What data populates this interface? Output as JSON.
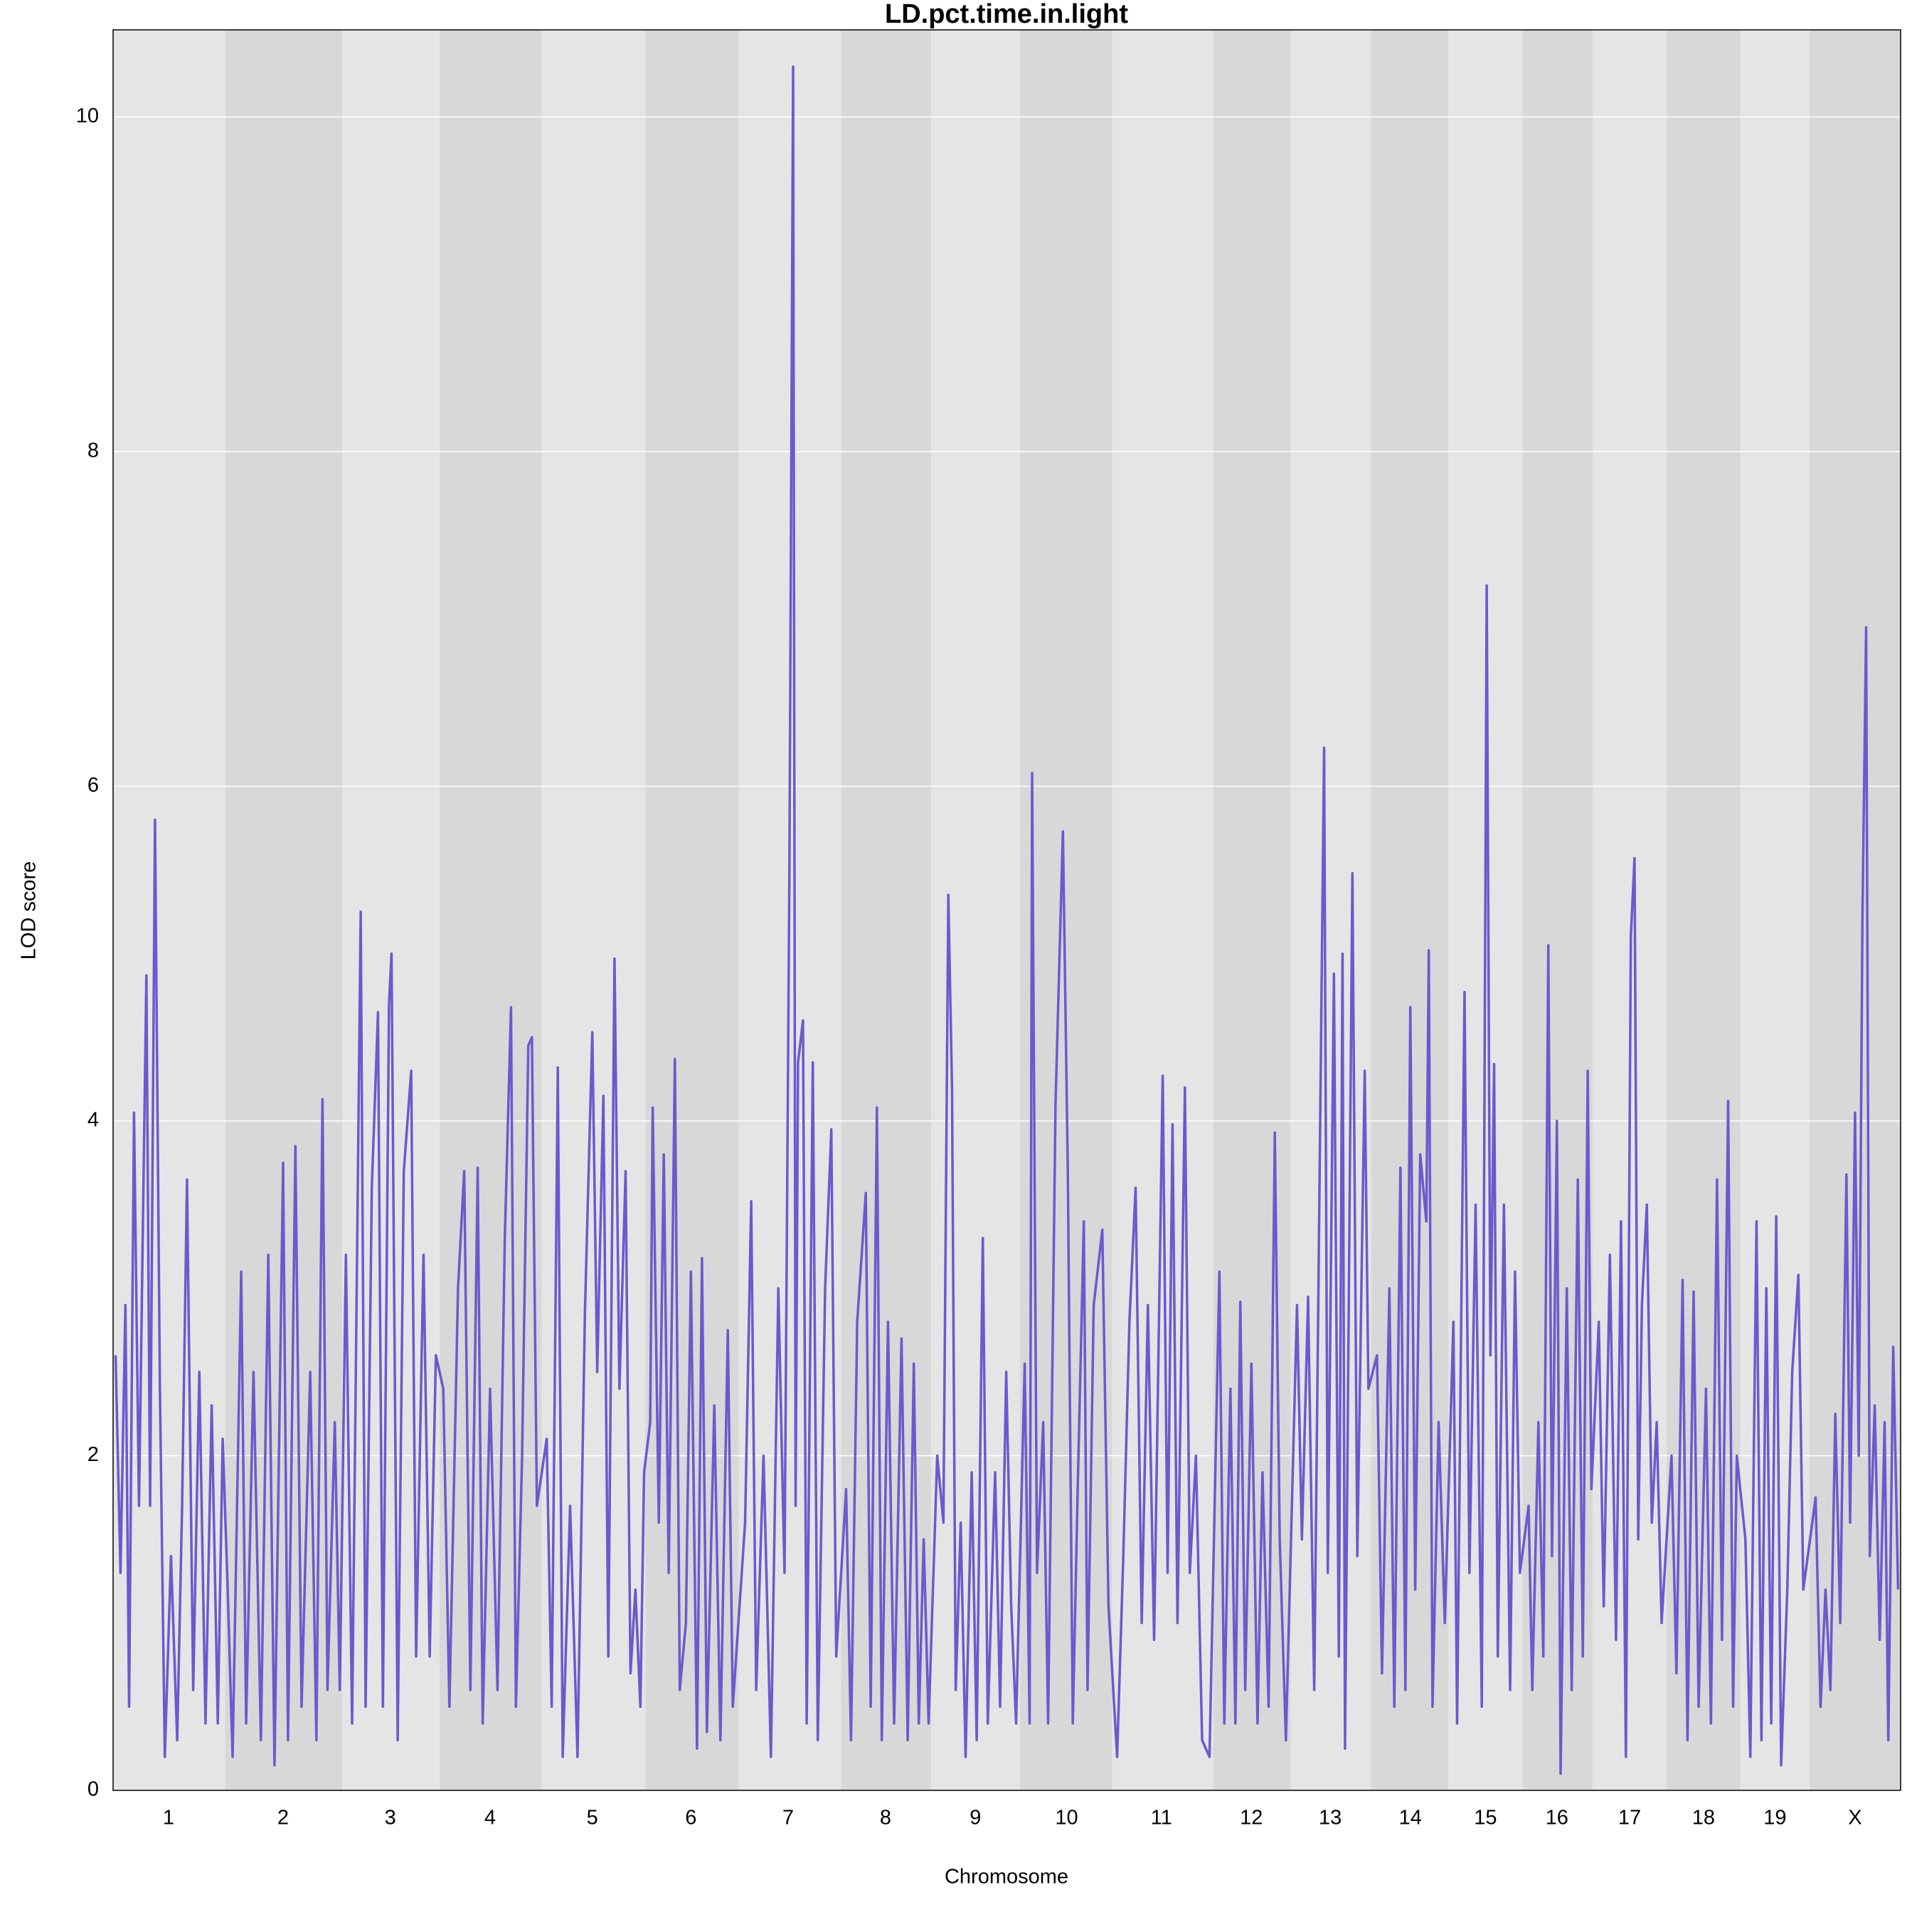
{
  "chart_data": {
    "type": "line",
    "title": "LD.pct.time.in.light",
    "x_label": "Chromosome",
    "y_label": "LOD score",
    "color": "#6a5acd",
    "band_colors": [
      "#e5e5e5",
      "#d8d8d8"
    ],
    "grid": true,
    "xlim": [
      0,
      1451
    ],
    "ylim": [
      0,
      10.52
    ],
    "yticks": [
      0,
      2,
      4,
      6,
      8,
      10
    ],
    "chromosome_bounds": [
      0,
      91,
      186,
      265,
      348,
      432,
      508,
      591,
      664,
      736,
      811,
      893,
      956,
      1021,
      1084,
      1144,
      1201,
      1261,
      1321,
      1377,
      1451
    ],
    "xticks": [
      {
        "value": 45,
        "label": "1"
      },
      {
        "value": 138,
        "label": "2"
      },
      {
        "value": 225,
        "label": "3"
      },
      {
        "value": 306,
        "label": "4"
      },
      {
        "value": 389,
        "label": "5"
      },
      {
        "value": 469,
        "label": "6"
      },
      {
        "value": 548,
        "label": "7"
      },
      {
        "value": 627,
        "label": "8"
      },
      {
        "value": 700,
        "label": "9"
      },
      {
        "value": 774,
        "label": "10"
      },
      {
        "value": 851,
        "label": "11"
      },
      {
        "value": 924,
        "label": "12"
      },
      {
        "value": 988,
        "label": "13"
      },
      {
        "value": 1053,
        "label": "14"
      },
      {
        "value": 1114,
        "label": "15"
      },
      {
        "value": 1172,
        "label": "16"
      },
      {
        "value": 1231,
        "label": "17"
      },
      {
        "value": 1291,
        "label": "18"
      },
      {
        "value": 1349,
        "label": "19"
      },
      {
        "value": 1414,
        "label": "X"
      }
    ],
    "x": [
      2,
      6,
      10,
      13,
      17,
      21,
      27,
      30,
      34,
      38,
      42,
      47,
      52,
      56,
      60,
      65,
      70,
      75,
      80,
      85,
      89,
      93,
      97,
      104,
      108,
      114,
      120,
      126,
      131,
      138,
      142,
      148,
      153,
      160,
      165,
      170,
      174,
      180,
      184,
      189,
      194,
      201,
      205,
      210,
      215,
      219,
      224,
      226,
      231,
      236,
      242,
      246,
      252,
      257,
      262,
      268,
      273,
      280,
      285,
      290,
      296,
      300,
      306,
      312,
      318,
      323,
      327,
      332,
      337,
      340,
      344,
      352,
      356,
      361,
      365,
      371,
      377,
      383,
      389,
      393,
      398,
      402,
      407,
      411,
      416,
      420,
      424,
      428,
      431,
      436,
      438,
      443,
      447,
      451,
      456,
      460,
      465,
      469,
      474,
      478,
      482,
      488,
      493,
      499,
      503,
      513,
      518,
      522,
      528,
      534,
      540,
      545,
      549,
      552,
      554,
      556,
      560,
      563,
      568,
      572,
      578,
      583,
      587,
      595,
      599,
      604,
      611,
      615,
      620,
      624,
      629,
      634,
      640,
      645,
      650,
      654,
      658,
      662,
      669,
      674,
      678,
      681,
      684,
      688,
      692,
      697,
      701,
      706,
      710,
      716,
      720,
      725,
      729,
      733,
      740,
      744,
      746,
      750,
      755,
      759,
      765,
      771,
      775,
      779,
      783,
      788,
      791,
      796,
      803,
      808,
      815,
      820,
      825,
      830,
      835,
      840,
      845,
      852,
      856,
      860,
      864,
      870,
      874,
      879,
      884,
      890,
      898,
      902,
      907,
      911,
      915,
      919,
      924,
      929,
      933,
      938,
      943,
      947,
      952,
      961,
      965,
      970,
      975,
      983,
      986,
      991,
      995,
      998,
      1000,
      1006,
      1010,
      1016,
      1019,
      1026,
      1030,
      1036,
      1040,
      1045,
      1049,
      1053,
      1057,
      1061,
      1066,
      1068,
      1071,
      1076,
      1081,
      1088,
      1091,
      1097,
      1101,
      1106,
      1111,
      1115,
      1118,
      1121,
      1124,
      1129,
      1134,
      1138,
      1142,
      1149,
      1152,
      1157,
      1161,
      1165,
      1168,
      1172,
      1175,
      1180,
      1184,
      1189,
      1193,
      1197,
      1200,
      1206,
      1210,
      1215,
      1220,
      1224,
      1228,
      1232,
      1235,
      1238,
      1241,
      1245,
      1249,
      1253,
      1257,
      1265,
      1269,
      1274,
      1278,
      1283,
      1287,
      1293,
      1297,
      1302,
      1306,
      1311,
      1315,
      1318,
      1325,
      1329,
      1334,
      1338,
      1342,
      1346,
      1350,
      1354,
      1359,
      1363,
      1368,
      1372,
      1382,
      1386,
      1390,
      1394,
      1398,
      1402,
      1407,
      1410,
      1414,
      1417,
      1420,
      1423,
      1426,
      1430,
      1434,
      1438,
      1441,
      1445,
      1449
    ],
    "values": [
      2.6,
      1.3,
      2.9,
      0.5,
      4.05,
      1.7,
      4.87,
      1.7,
      5.8,
      2.4,
      0.2,
      1.4,
      0.3,
      1.7,
      3.65,
      0.6,
      2.5,
      0.4,
      2.3,
      0.4,
      2.1,
      1.2,
      0.2,
      3.1,
      0.4,
      2.5,
      0.3,
      3.2,
      0.15,
      3.75,
      0.3,
      3.85,
      0.5,
      2.5,
      0.3,
      4.13,
      0.6,
      2.2,
      0.6,
      3.2,
      0.4,
      5.25,
      0.5,
      3.6,
      4.65,
      0.5,
      4.7,
      5.0,
      0.3,
      3.7,
      4.3,
      0.8,
      3.2,
      0.8,
      2.6,
      2.4,
      0.5,
      3.0,
      3.7,
      0.6,
      3.72,
      0.4,
      2.4,
      0.6,
      3.3,
      4.68,
      0.5,
      2.0,
      4.45,
      4.5,
      1.7,
      2.1,
      0.5,
      4.32,
      0.2,
      1.7,
      0.2,
      2.85,
      4.53,
      2.5,
      4.15,
      0.8,
      4.97,
      2.4,
      3.7,
      0.7,
      1.2,
      0.5,
      1.9,
      2.2,
      4.08,
      1.6,
      3.8,
      1.3,
      4.37,
      0.6,
      1.0,
      3.1,
      0.25,
      3.18,
      0.35,
      2.3,
      0.3,
      2.75,
      0.5,
      1.6,
      3.52,
      0.6,
      2.0,
      0.2,
      3.0,
      1.3,
      5.5,
      10.3,
      1.7,
      4.35,
      4.6,
      0.4,
      4.35,
      0.3,
      3.0,
      3.95,
      0.8,
      1.8,
      0.3,
      2.8,
      3.57,
      0.5,
      4.08,
      0.3,
      2.8,
      0.4,
      2.7,
      0.3,
      2.55,
      0.4,
      1.5,
      0.4,
      2.0,
      1.6,
      5.35,
      4.2,
      0.6,
      1.6,
      0.2,
      1.9,
      0.3,
      3.3,
      0.4,
      1.9,
      0.5,
      2.5,
      1.1,
      0.4,
      2.55,
      0.4,
      6.08,
      1.3,
      2.2,
      0.4,
      4.1,
      5.73,
      3.7,
      0.4,
      1.8,
      3.4,
      0.6,
      2.9,
      3.35,
      1.1,
      0.2,
      1.4,
      2.8,
      3.6,
      1.0,
      2.9,
      0.9,
      4.27,
      1.3,
      3.98,
      1.0,
      4.2,
      1.3,
      2.0,
      0.3,
      0.2,
      3.1,
      0.4,
      2.4,
      0.4,
      2.92,
      0.6,
      2.55,
      0.4,
      1.9,
      0.5,
      3.93,
      1.5,
      0.3,
      2.9,
      1.5,
      2.95,
      0.6,
      6.23,
      1.3,
      4.88,
      0.8,
      5.0,
      0.25,
      5.48,
      1.4,
      4.3,
      2.4,
      2.6,
      0.7,
      3.0,
      0.5,
      3.72,
      0.6,
      4.68,
      1.2,
      3.8,
      3.4,
      5.02,
      0.5,
      2.2,
      1.0,
      2.8,
      0.4,
      4.77,
      1.3,
      3.5,
      0.5,
      7.2,
      2.6,
      4.34,
      0.8,
      3.5,
      0.6,
      3.1,
      1.3,
      1.7,
      0.6,
      2.2,
      0.8,
      5.05,
      1.4,
      4.0,
      0.1,
      3.0,
      0.6,
      3.65,
      0.8,
      4.3,
      1.8,
      2.8,
      1.1,
      3.2,
      0.9,
      3.4,
      0.2,
      5.1,
      5.57,
      1.5,
      2.9,
      3.5,
      1.6,
      2.2,
      1.0,
      2.0,
      0.7,
      3.05,
      0.3,
      2.98,
      0.5,
      2.4,
      0.4,
      3.65,
      0.9,
      4.12,
      0.5,
      2.0,
      1.5,
      0.2,
      3.4,
      0.3,
      3.0,
      0.4,
      3.43,
      0.15,
      1.2,
      2.5,
      3.08,
      1.2,
      1.75,
      0.5,
      1.2,
      0.6,
      2.25,
      1.0,
      3.68,
      1.6,
      4.05,
      2.0,
      5.2,
      6.95,
      1.4,
      2.3,
      0.9,
      2.2,
      0.3,
      2.65,
      1.2
    ]
  }
}
